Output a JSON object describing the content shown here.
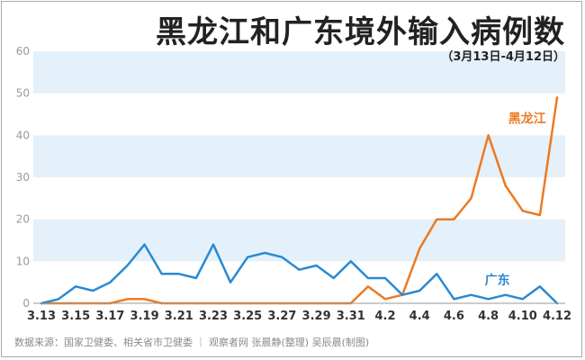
{
  "header": {
    "title": "黑龙江和广东境外输入病例数",
    "subtitle": "（3月13日-4月12日）"
  },
  "footer": {
    "source": "数据来源：国家卫健委、相关省市卫健委  ｜  观察者网 张晨静(整理)  吴辰晨(制图)"
  },
  "chart_data": {
    "type": "line",
    "title": "黑龙江和广东境外输入病例数",
    "subtitle": "（3月13日-4月12日）",
    "xlabel": "",
    "ylabel": "",
    "ylim": [
      0,
      60
    ],
    "yticks": [
      0,
      10,
      20,
      30,
      40,
      50,
      60
    ],
    "grid": "horizontal alternating bands",
    "x": [
      "3.13",
      "3.14",
      "3.15",
      "3.16",
      "3.17",
      "3.18",
      "3.19",
      "3.20",
      "3.21",
      "3.22",
      "3.23",
      "3.24",
      "3.25",
      "3.26",
      "3.27",
      "3.28",
      "3.29",
      "3.30",
      "3.31",
      "4.1",
      "4.2",
      "4.3",
      "4.4",
      "4.5",
      "4.6",
      "4.7",
      "4.8",
      "4.9",
      "4.10",
      "4.11",
      "4.12"
    ],
    "xtick_labels": [
      "3.13",
      "3.15",
      "3.17",
      "3.19",
      "3.21",
      "3.23",
      "3.25",
      "3.27",
      "3.29",
      "3.31",
      "4.2",
      "4.4",
      "4.6",
      "4.8",
      "4.10",
      "4.12"
    ],
    "series": [
      {
        "name": "黑龙江",
        "color": "#ec7a23",
        "values": [
          0,
          0,
          0,
          0,
          0,
          1,
          1,
          0,
          0,
          0,
          0,
          0,
          0,
          0,
          0,
          0,
          0,
          0,
          0,
          4,
          1,
          2,
          13,
          20,
          20,
          25,
          40,
          28,
          22,
          21,
          49
        ]
      },
      {
        "name": "广东",
        "color": "#2a8ad2",
        "values": [
          0,
          1,
          4,
          3,
          5,
          9,
          14,
          7,
          7,
          6,
          14,
          5,
          11,
          12,
          11,
          8,
          9,
          6,
          10,
          6,
          6,
          2,
          3,
          7,
          1,
          2,
          1,
          2,
          1,
          4,
          0
        ]
      }
    ]
  }
}
